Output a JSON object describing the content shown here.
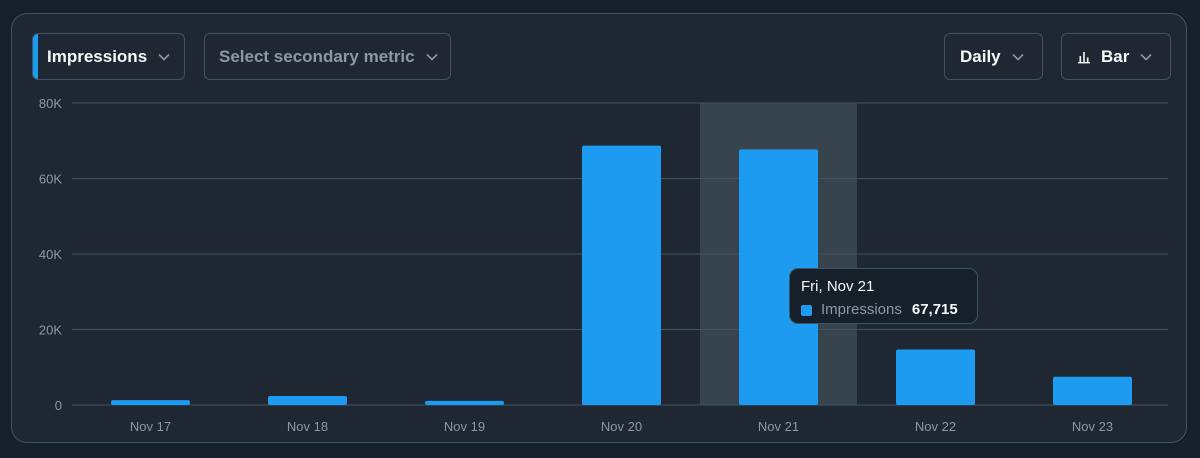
{
  "controls": {
    "primary_metric": "Impressions",
    "secondary_metric_placeholder": "Select secondary metric",
    "interval": "Daily",
    "chart_type": "Bar"
  },
  "colors": {
    "bar": "#1d9bf0",
    "highlight": "#38444d",
    "grid": "#3d5466",
    "axis_text": "#8b98a5"
  },
  "tooltip": {
    "date": "Fri, Nov 21",
    "series": "Impressions",
    "value": "67,715"
  },
  "chart_data": {
    "type": "bar",
    "categories": [
      "Nov 17",
      "Nov 18",
      "Nov 19",
      "Nov 20",
      "Nov 21",
      "Nov 22",
      "Nov 23"
    ],
    "series": [
      {
        "name": "Impressions",
        "values": [
          1300,
          2400,
          1100,
          68700,
          67715,
          14700,
          7500
        ]
      }
    ],
    "y_ticks": [
      "0",
      "20K",
      "40K",
      "60K",
      "80K"
    ],
    "ylim": [
      0,
      80000
    ],
    "grid": true,
    "highlighted_category": "Nov 21",
    "title": "",
    "xlabel": "",
    "ylabel": ""
  }
}
